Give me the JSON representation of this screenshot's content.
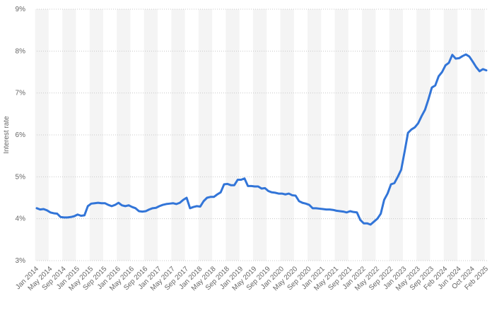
{
  "chart_data": {
    "type": "line",
    "y_label": "Interest rate",
    "categories": [
      "Jan 2014",
      null,
      null,
      null,
      "May 2014",
      null,
      null,
      null,
      "Sep 2014",
      null,
      null,
      null,
      "Jan 2015",
      null,
      null,
      null,
      "May 2015",
      null,
      null,
      null,
      "Sep 2015",
      null,
      null,
      null,
      "Jan 2016",
      null,
      null,
      null,
      "May 2016",
      null,
      null,
      null,
      "Sep 2016",
      null,
      null,
      null,
      "Jan 2017",
      null,
      null,
      null,
      "May 2017",
      null,
      null,
      null,
      "Sep 2017",
      null,
      null,
      null,
      "Jan 2018",
      null,
      null,
      null,
      "May 2018",
      null,
      null,
      null,
      "Sep 2018",
      null,
      null,
      null,
      "Jan 2019",
      null,
      null,
      null,
      "May 2019",
      null,
      null,
      null,
      "Sep 2019",
      null,
      null,
      null,
      "Jan 2020",
      null,
      null,
      null,
      "May 2020",
      null,
      null,
      null,
      "Sep 2020",
      null,
      null,
      null,
      "Jan 2021",
      null,
      null,
      null,
      "May 2021",
      null,
      null,
      null,
      "Sep 2021",
      null,
      null,
      null,
      "Jan 2022",
      null,
      null,
      null,
      "May 2022",
      null,
      null,
      null,
      "Sep 2022",
      null,
      null,
      null,
      "Jan 2023",
      null,
      null,
      null,
      "May 2023",
      null,
      null,
      null,
      "Sep 2023",
      null,
      null,
      null,
      "Feb 2024",
      null,
      null,
      null,
      "Jun 2024",
      null,
      null,
      null,
      "Oct 2024",
      null,
      null,
      null,
      "Feb 2025"
    ],
    "values": [
      4.25,
      4.22,
      4.23,
      4.2,
      4.15,
      4.13,
      4.12,
      4.04,
      4.03,
      4.03,
      4.04,
      4.06,
      4.1,
      4.07,
      4.08,
      4.3,
      4.36,
      4.37,
      4.38,
      4.37,
      4.37,
      4.33,
      4.3,
      4.33,
      4.38,
      4.32,
      4.3,
      4.32,
      4.28,
      4.25,
      4.18,
      4.17,
      4.18,
      4.22,
      4.25,
      4.26,
      4.3,
      4.33,
      4.35,
      4.36,
      4.37,
      4.35,
      4.38,
      4.45,
      4.5,
      4.25,
      4.28,
      4.3,
      4.29,
      4.42,
      4.5,
      4.52,
      4.52,
      4.58,
      4.63,
      4.82,
      4.83,
      4.8,
      4.8,
      4.93,
      4.93,
      4.96,
      4.78,
      4.78,
      4.77,
      4.77,
      4.72,
      4.73,
      4.66,
      4.63,
      4.62,
      4.6,
      4.6,
      4.58,
      4.6,
      4.56,
      4.55,
      4.42,
      4.38,
      4.36,
      4.33,
      4.25,
      4.25,
      4.24,
      4.23,
      4.22,
      4.22,
      4.21,
      4.19,
      4.18,
      4.17,
      4.15,
      4.18,
      4.16,
      4.15,
      3.97,
      3.89,
      3.89,
      3.86,
      3.93,
      4.0,
      4.12,
      4.45,
      4.6,
      4.82,
      4.85,
      5.0,
      5.17,
      5.6,
      6.05,
      6.13,
      6.18,
      6.28,
      6.45,
      6.6,
      6.85,
      7.13,
      7.18,
      7.4,
      7.5,
      7.66,
      7.72,
      7.91,
      7.82,
      7.83,
      7.88,
      7.92,
      7.87,
      7.75,
      7.62,
      7.52,
      7.57,
      7.54
    ],
    "color": "#3275d8",
    "ylim": [
      3,
      9
    ],
    "yticks": [
      {
        "value": 3,
        "label": "3%"
      },
      {
        "value": 4,
        "label": "4%"
      },
      {
        "value": 5,
        "label": "5%"
      },
      {
        "value": 6,
        "label": "6%"
      },
      {
        "value": 7,
        "label": "7%"
      },
      {
        "value": 8,
        "label": "8%"
      },
      {
        "value": 9,
        "label": "9%"
      }
    ],
    "grid": true
  }
}
